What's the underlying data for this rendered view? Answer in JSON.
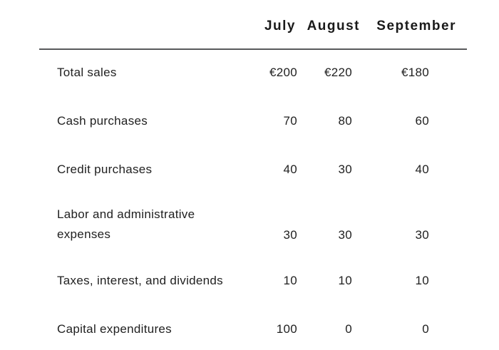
{
  "table": {
    "columns": [
      "July",
      "August",
      "September"
    ],
    "rows": [
      {
        "label": "Total sales",
        "values": [
          "€200",
          "€220",
          "€180"
        ]
      },
      {
        "label": "Cash purchases",
        "values": [
          "70",
          "80",
          "60"
        ]
      },
      {
        "label": "Credit purchases",
        "values": [
          "40",
          "30",
          "40"
        ]
      },
      {
        "label": "Labor and administrative expenses",
        "values": [
          "30",
          "30",
          "30"
        ]
      },
      {
        "label": "Taxes, interest, and dividends",
        "values": [
          "10",
          "10",
          "10"
        ]
      },
      {
        "label": "Capital expenditures",
        "values": [
          "100",
          "0",
          "0"
        ]
      }
    ],
    "currency_symbol": "€"
  },
  "colors": {
    "background": "#ffffff",
    "text": "#212121",
    "header_text": "#1a1a1a",
    "rule": "#58595b"
  }
}
